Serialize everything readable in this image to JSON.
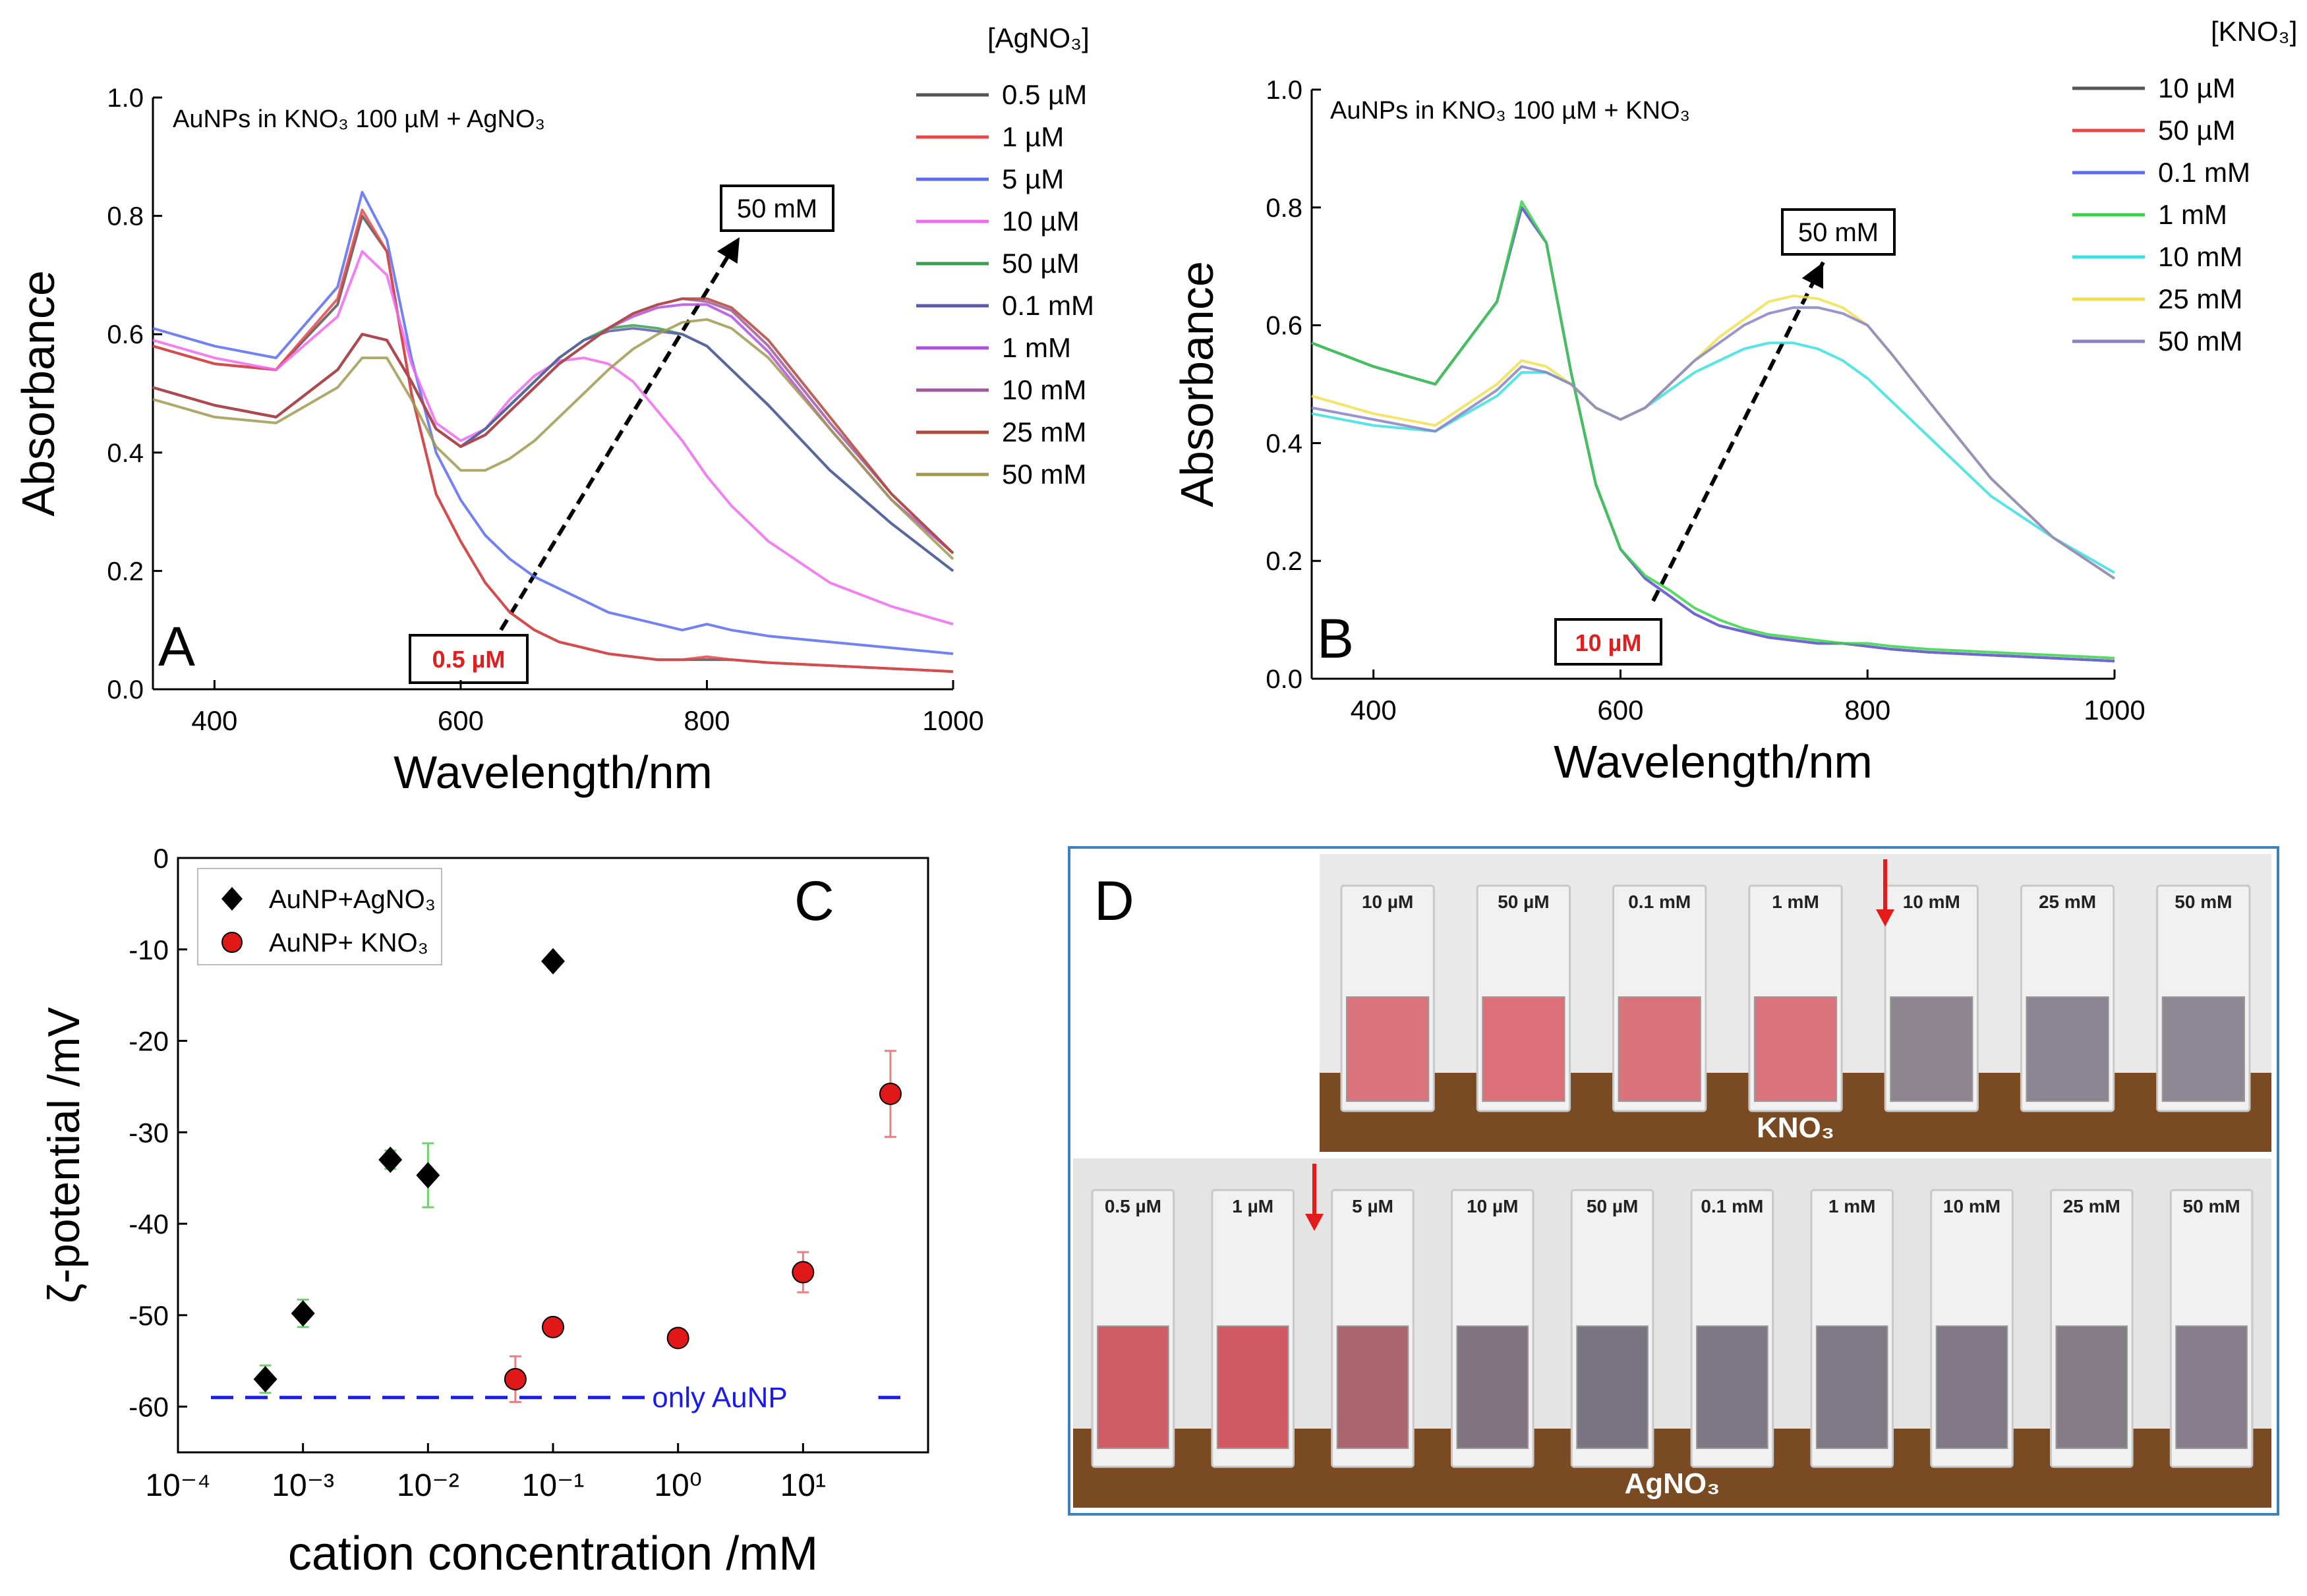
{
  "panels": {
    "A": {
      "letter": "A",
      "inset_title": "AuNPs in KNO₃ 100 µM + AgNO₃",
      "legend_title": "[AgNO₃]",
      "start_label": "0.5 µM",
      "end_label": "50 mM"
    },
    "B": {
      "letter": "B",
      "inset_title": "AuNPs in KNO₃ 100 µM + KNO₃",
      "legend_title": "[KNO₃]",
      "start_label": "10 µM",
      "end_label": "50 mM"
    },
    "C": {
      "letter": "C",
      "baseline_label": "only AuNP"
    },
    "D": {
      "letter": "D",
      "top_row_title": "KNO₃",
      "bottom_row_title": "AgNO₃",
      "top_row_labels": [
        "10 µM",
        "50 µM",
        "0.1 mM",
        "1 mM",
        "10 mM",
        "25 mM",
        "50 mM"
      ],
      "bottom_row_labels": [
        "0.5 µM",
        "1 µM",
        "5 µM",
        "10 µM",
        "50 µM",
        "0.1 mM",
        "1 mM",
        "10 mM",
        "25 mM",
        "50 mM"
      ],
      "top_row_colors": [
        "#d9737c",
        "#dd6f78",
        "#d8737b",
        "#d9737c",
        "#8d8590",
        "#8c8592",
        "#8e8794"
      ],
      "bottom_row_colors": [
        "#cf5d66",
        "#d05a63",
        "#a9666f",
        "#7f7480",
        "#7b7581",
        "#7e7884",
        "#7f7985",
        "#807985",
        "#857c88",
        "#867c8a"
      ]
    }
  },
  "chart_data": [
    {
      "type": "line",
      "title": "AuNPs in KNO₃ 100 µM + AgNO₃",
      "xlabel": "Wavelength/nm",
      "ylabel": "Absorbance",
      "xlim": [
        350,
        1000
      ],
      "ylim": [
        0,
        1.0
      ],
      "xticks": [
        400,
        600,
        800,
        1000
      ],
      "yticks": [
        0.0,
        0.2,
        0.4,
        0.6,
        0.8,
        1.0
      ],
      "legend_title": "[AgNO₃]",
      "x": [
        350,
        400,
        450,
        500,
        520,
        540,
        560,
        580,
        600,
        620,
        640,
        660,
        680,
        700,
        720,
        740,
        760,
        780,
        800,
        820,
        850,
        900,
        950,
        1000
      ],
      "series": [
        {
          "name": "0.5 µM",
          "color": "#555555",
          "values": [
            0.58,
            0.55,
            0.54,
            0.65,
            0.8,
            0.74,
            0.5,
            0.33,
            0.25,
            0.18,
            0.13,
            0.1,
            0.08,
            0.07,
            0.06,
            0.055,
            0.05,
            0.05,
            0.05,
            0.05,
            0.045,
            0.04,
            0.035,
            0.03
          ]
        },
        {
          "name": "1 µM",
          "color": "#e8474a",
          "values": [
            0.58,
            0.55,
            0.54,
            0.66,
            0.81,
            0.74,
            0.5,
            0.33,
            0.25,
            0.18,
            0.13,
            0.1,
            0.08,
            0.07,
            0.06,
            0.055,
            0.05,
            0.05,
            0.055,
            0.05,
            0.045,
            0.04,
            0.035,
            0.03
          ]
        },
        {
          "name": "5 µM",
          "color": "#5b6cf0",
          "values": [
            0.61,
            0.58,
            0.56,
            0.68,
            0.84,
            0.76,
            0.56,
            0.4,
            0.32,
            0.26,
            0.22,
            0.19,
            0.17,
            0.15,
            0.13,
            0.12,
            0.11,
            0.1,
            0.11,
            0.1,
            0.09,
            0.08,
            0.07,
            0.06
          ]
        },
        {
          "name": "10 µM",
          "color": "#ee6bee",
          "values": [
            0.59,
            0.56,
            0.54,
            0.63,
            0.74,
            0.7,
            0.55,
            0.45,
            0.42,
            0.44,
            0.49,
            0.53,
            0.555,
            0.56,
            0.55,
            0.52,
            0.47,
            0.42,
            0.36,
            0.31,
            0.25,
            0.18,
            0.14,
            0.11
          ]
        },
        {
          "name": "50 µM",
          "color": "#3aa050",
          "values": [
            0.51,
            0.48,
            0.46,
            0.54,
            0.6,
            0.59,
            0.52,
            0.44,
            0.41,
            0.44,
            0.48,
            0.52,
            0.56,
            0.59,
            0.61,
            0.615,
            0.61,
            0.6,
            0.58,
            0.54,
            0.48,
            0.37,
            0.28,
            0.2
          ]
        },
        {
          "name": "0.1 mM",
          "color": "#5a5aa8",
          "values": [
            0.51,
            0.48,
            0.46,
            0.54,
            0.6,
            0.59,
            0.52,
            0.44,
            0.41,
            0.44,
            0.48,
            0.52,
            0.56,
            0.59,
            0.605,
            0.61,
            0.605,
            0.6,
            0.58,
            0.54,
            0.48,
            0.37,
            0.28,
            0.2
          ]
        },
        {
          "name": "1 mM",
          "color": "#b050e0",
          "values": [
            0.51,
            0.48,
            0.46,
            0.54,
            0.6,
            0.59,
            0.52,
            0.44,
            0.41,
            0.43,
            0.47,
            0.51,
            0.55,
            0.58,
            0.61,
            0.63,
            0.645,
            0.65,
            0.65,
            0.63,
            0.57,
            0.44,
            0.32,
            0.23
          ]
        },
        {
          "name": "10 mM",
          "color": "#a05a9a",
          "values": [
            0.51,
            0.48,
            0.46,
            0.54,
            0.6,
            0.59,
            0.52,
            0.44,
            0.41,
            0.43,
            0.47,
            0.51,
            0.55,
            0.58,
            0.61,
            0.635,
            0.65,
            0.66,
            0.655,
            0.64,
            0.58,
            0.45,
            0.33,
            0.23
          ]
        },
        {
          "name": "25 mM",
          "color": "#b0483c",
          "values": [
            0.51,
            0.48,
            0.46,
            0.54,
            0.6,
            0.59,
            0.52,
            0.44,
            0.41,
            0.43,
            0.47,
            0.51,
            0.55,
            0.58,
            0.61,
            0.635,
            0.65,
            0.66,
            0.66,
            0.645,
            0.59,
            0.46,
            0.33,
            0.23
          ]
        },
        {
          "name": "50 mM",
          "color": "#a09a50",
          "values": [
            0.49,
            0.46,
            0.45,
            0.51,
            0.56,
            0.56,
            0.49,
            0.41,
            0.37,
            0.37,
            0.39,
            0.42,
            0.46,
            0.5,
            0.54,
            0.575,
            0.6,
            0.62,
            0.625,
            0.61,
            0.56,
            0.44,
            0.32,
            0.22
          ]
        }
      ]
    },
    {
      "type": "line",
      "title": "AuNPs in KNO₃ 100 µM + KNO₃",
      "xlabel": "Wavelength/nm",
      "ylabel": "Absorbance",
      "xlim": [
        350,
        1000
      ],
      "ylim": [
        0,
        1.0
      ],
      "xticks": [
        400,
        600,
        800,
        1000
      ],
      "yticks": [
        0.0,
        0.2,
        0.4,
        0.6,
        0.8,
        1.0
      ],
      "legend_title": "[KNO₃]",
      "x": [
        350,
        400,
        450,
        500,
        520,
        540,
        560,
        580,
        600,
        620,
        640,
        660,
        680,
        700,
        720,
        740,
        760,
        780,
        800,
        820,
        850,
        900,
        950,
        1000
      ],
      "series": [
        {
          "name": "10 µM",
          "color": "#555555",
          "values": [
            0.57,
            0.53,
            0.5,
            0.64,
            0.8,
            0.74,
            0.52,
            0.33,
            0.22,
            0.17,
            0.14,
            0.11,
            0.09,
            0.08,
            0.07,
            0.065,
            0.06,
            0.06,
            0.055,
            0.05,
            0.045,
            0.04,
            0.035,
            0.03
          ]
        },
        {
          "name": "50 µM",
          "color": "#e8474a",
          "values": [
            0.57,
            0.53,
            0.5,
            0.64,
            0.8,
            0.74,
            0.52,
            0.33,
            0.22,
            0.17,
            0.14,
            0.11,
            0.09,
            0.08,
            0.07,
            0.065,
            0.06,
            0.06,
            0.055,
            0.05,
            0.045,
            0.04,
            0.035,
            0.03
          ]
        },
        {
          "name": "0.1 mM",
          "color": "#5b6cf0",
          "values": [
            0.57,
            0.53,
            0.5,
            0.64,
            0.8,
            0.74,
            0.52,
            0.33,
            0.22,
            0.17,
            0.14,
            0.11,
            0.09,
            0.08,
            0.07,
            0.065,
            0.06,
            0.06,
            0.055,
            0.05,
            0.045,
            0.04,
            0.035,
            0.03
          ]
        },
        {
          "name": "1 mM",
          "color": "#3ad24a",
          "values": [
            0.57,
            0.53,
            0.5,
            0.64,
            0.81,
            0.74,
            0.52,
            0.33,
            0.22,
            0.175,
            0.15,
            0.12,
            0.1,
            0.085,
            0.075,
            0.07,
            0.065,
            0.06,
            0.06,
            0.055,
            0.05,
            0.045,
            0.04,
            0.035
          ]
        },
        {
          "name": "10 mM",
          "color": "#38e0e0",
          "values": [
            0.45,
            0.43,
            0.42,
            0.48,
            0.52,
            0.52,
            0.5,
            0.46,
            0.44,
            0.46,
            0.49,
            0.52,
            0.54,
            0.56,
            0.57,
            0.57,
            0.56,
            0.54,
            0.51,
            0.47,
            0.41,
            0.31,
            0.24,
            0.18
          ]
        },
        {
          "name": "25 mM",
          "color": "#f0e050",
          "values": [
            0.48,
            0.45,
            0.43,
            0.5,
            0.54,
            0.53,
            0.5,
            0.46,
            0.44,
            0.46,
            0.5,
            0.54,
            0.58,
            0.61,
            0.64,
            0.65,
            0.645,
            0.63,
            0.6,
            0.55,
            0.47,
            0.34,
            0.24,
            0.17
          ]
        },
        {
          "name": "50 mM",
          "color": "#8a82c4",
          "values": [
            0.46,
            0.44,
            0.42,
            0.49,
            0.53,
            0.52,
            0.5,
            0.46,
            0.44,
            0.46,
            0.5,
            0.54,
            0.57,
            0.6,
            0.62,
            0.63,
            0.63,
            0.62,
            0.6,
            0.55,
            0.47,
            0.34,
            0.24,
            0.17
          ]
        }
      ]
    },
    {
      "type": "scatter",
      "xlabel": "cation concentration /mM",
      "ylabel": "ζ-potential /mV",
      "xscale": "log",
      "xlim": [
        0.0001,
        100
      ],
      "ylim": [
        -65,
        0
      ],
      "yticks": [
        0,
        -10,
        -20,
        -30,
        -40,
        -50,
        -60
      ],
      "xtick_labels": [
        "10⁻⁴",
        "10⁻³",
        "10⁻²",
        "10⁻¹",
        "10⁰",
        "10¹"
      ],
      "xtick_values": [
        0.0001,
        0.001,
        0.01,
        0.1,
        1,
        10
      ],
      "legend_position": "top-left",
      "baseline": {
        "label": "only AuNP",
        "value": -59,
        "color": "#1a1aee"
      },
      "series": [
        {
          "name": "AuNP+AgNO₃",
          "marker": "diamond",
          "color": "#000000",
          "errcolor": "#70d070",
          "x": [
            0.0005,
            0.001,
            0.005,
            0.01,
            0.1
          ],
          "y": [
            -57,
            -49.8,
            -33,
            -34.7,
            -11.3
          ],
          "err": [
            1.5,
            1.5,
            1.0,
            3.5,
            0.5
          ]
        },
        {
          "name": "AuNP+ KNO₃",
          "marker": "circle",
          "color": "#e01818",
          "errcolor": "#e88080",
          "x": [
            0.05,
            0.1,
            1,
            10,
            50
          ],
          "y": [
            -57,
            -51.3,
            -52.5,
            -45.3,
            -25.8
          ],
          "err": [
            2.5,
            0.8,
            0.8,
            2.2,
            4.7
          ]
        }
      ]
    }
  ]
}
